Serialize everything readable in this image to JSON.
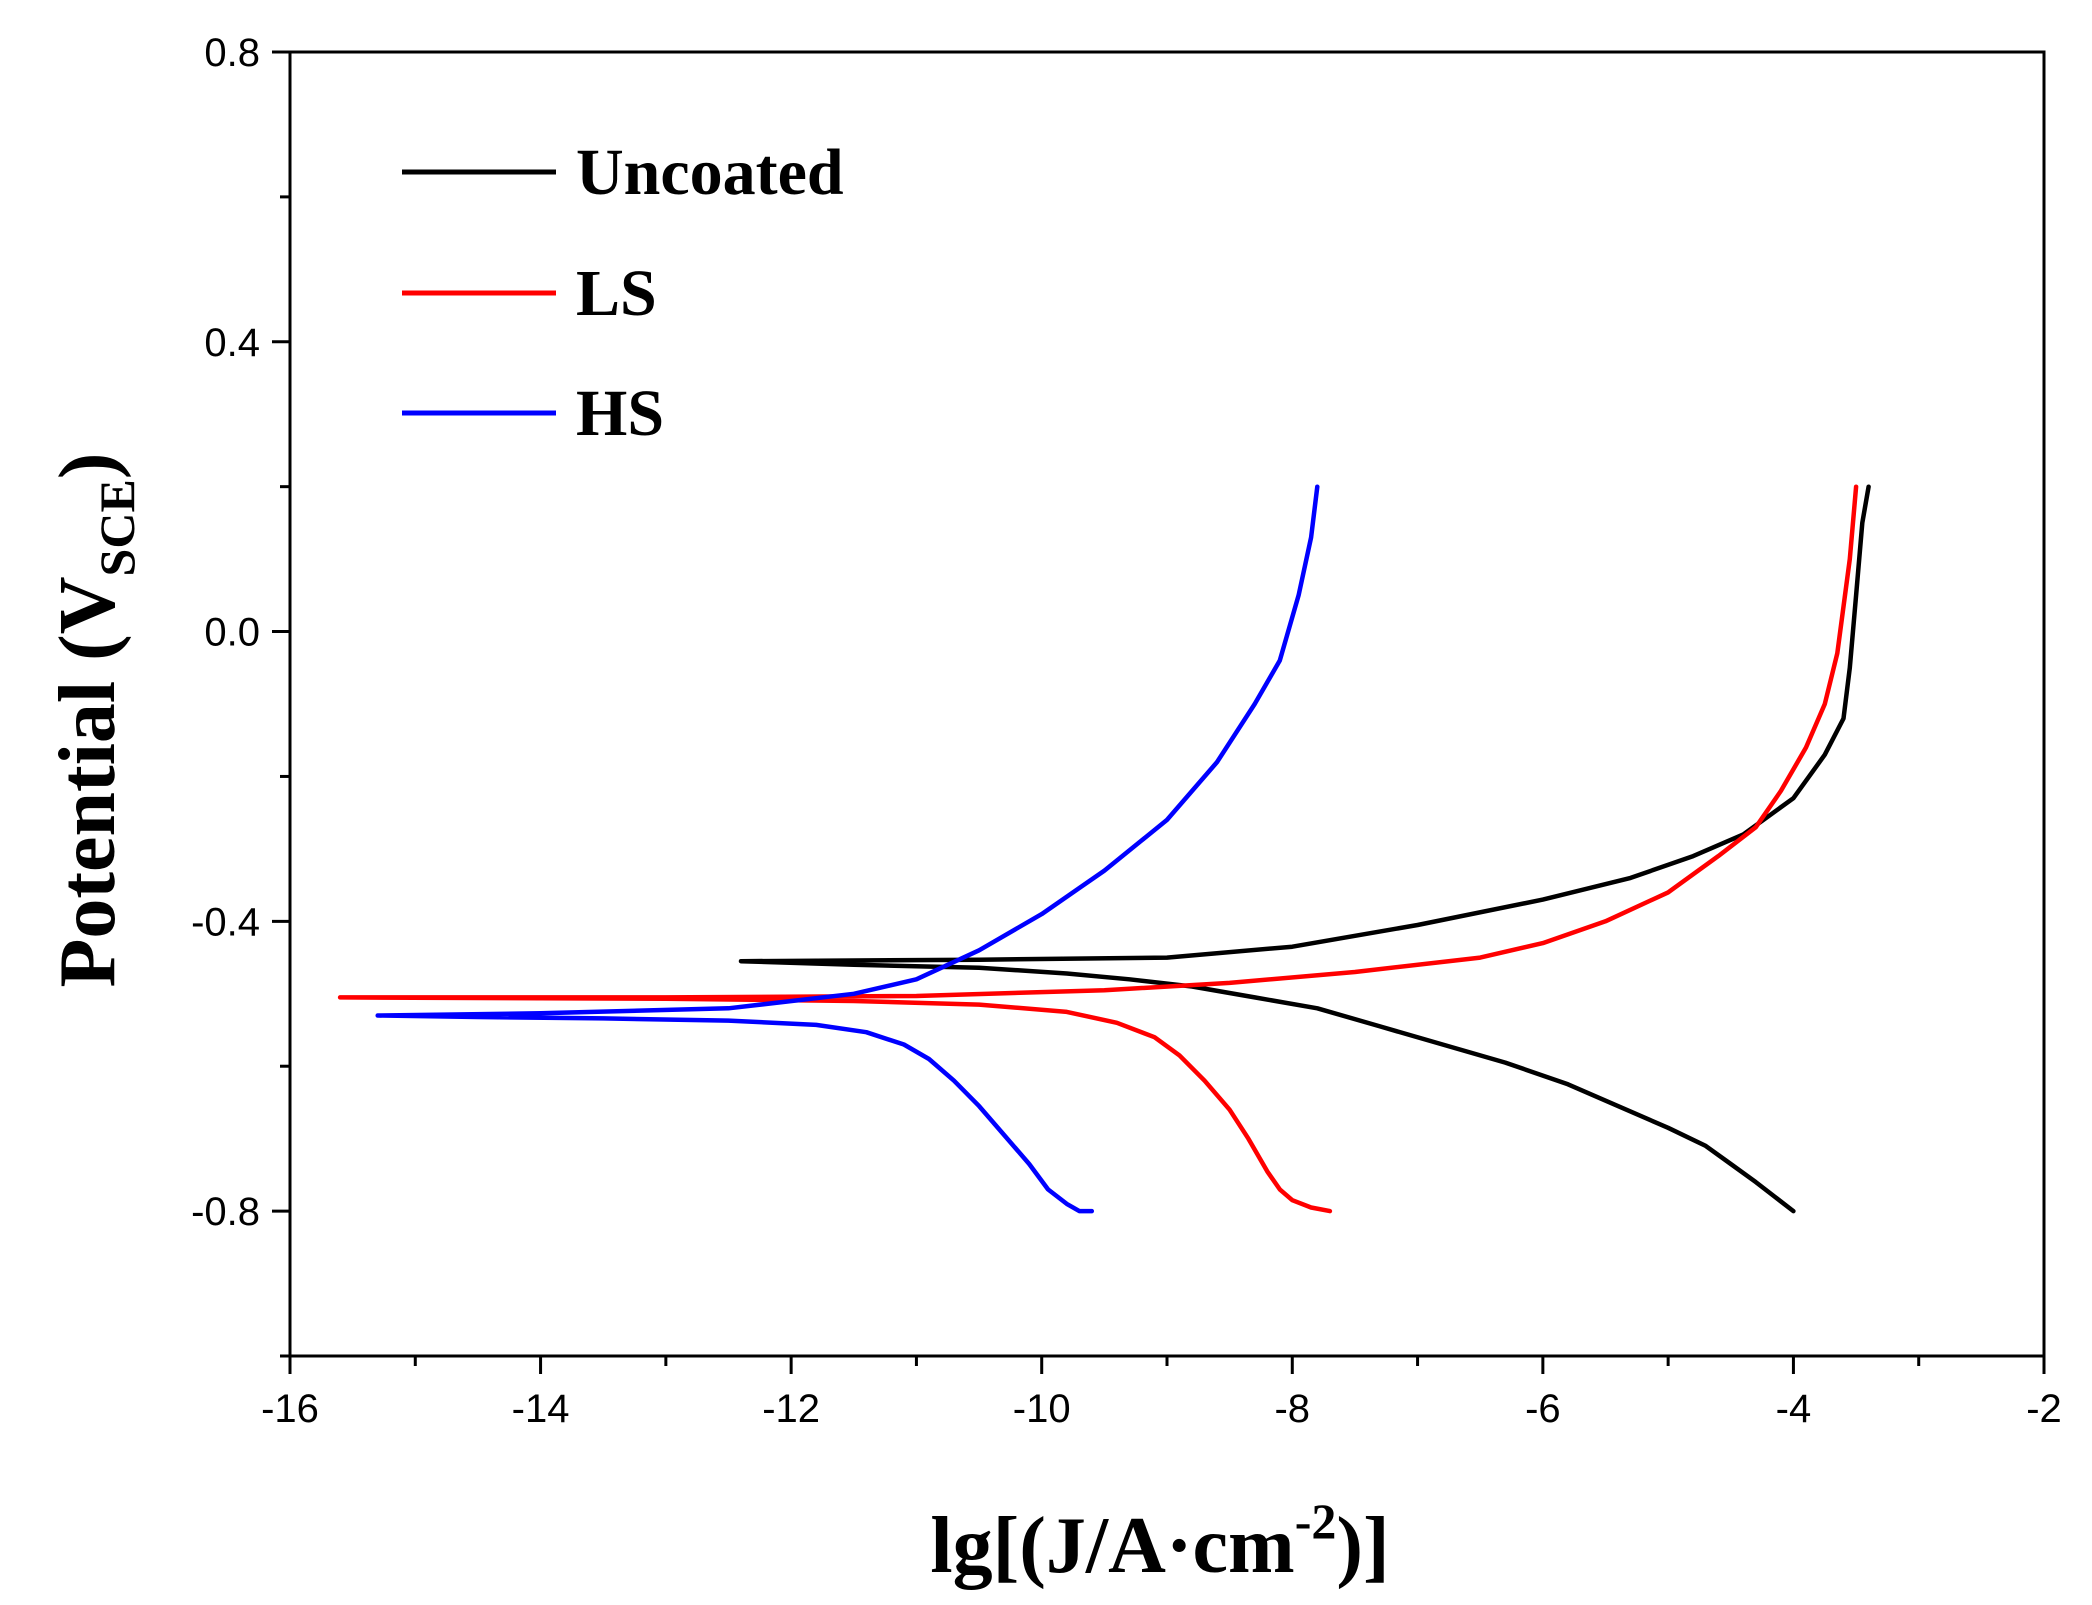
{
  "chart_data": {
    "type": "line",
    "title": "",
    "xlabel": {
      "main": "lg[(J/A·cm",
      "superscript": "-2",
      "close": ")]"
    },
    "ylabel": {
      "main": "Potential (V",
      "subscript": "SCE",
      "close": ")"
    },
    "xlim": [
      -16,
      -2
    ],
    "ylim": [
      -1.0,
      0.8
    ],
    "xticks": [
      -16,
      -14,
      -12,
      -10,
      -8,
      -6,
      -4,
      -2
    ],
    "xtick_labels": [
      "-16",
      "-14",
      "-12",
      "-10",
      "-8",
      "-6",
      "-4",
      "-2"
    ],
    "yticks": [
      -0.8,
      -0.4,
      0.0,
      0.4,
      0.8
    ],
    "ytick_labels": [
      "-0.8",
      "-0.4",
      "0.0",
      "0.4",
      "0.8"
    ],
    "grid": false,
    "legend_position": "top-left",
    "series": [
      {
        "name": "Uncoated",
        "color": "#000000",
        "x": [
          -4.0,
          -4.15,
          -4.3,
          -4.5,
          -4.7,
          -5.0,
          -5.4,
          -5.8,
          -6.3,
          -6.8,
          -7.3,
          -7.8,
          -8.3,
          -8.8,
          -9.3,
          -9.8,
          -10.5,
          -11.5,
          -12.4,
          -10.5,
          -9.0,
          -8.0,
          -7.0,
          -6.0,
          -5.3,
          -4.8,
          -4.4,
          -4.0,
          -3.75,
          -3.6,
          -3.55,
          -3.5,
          -3.45,
          -3.4
        ],
        "y": [
          -0.8,
          -0.78,
          -0.76,
          -0.735,
          -0.71,
          -0.685,
          -0.655,
          -0.625,
          -0.595,
          -0.57,
          -0.545,
          -0.52,
          -0.505,
          -0.49,
          -0.48,
          -0.472,
          -0.464,
          -0.46,
          -0.455,
          -0.453,
          -0.45,
          -0.435,
          -0.405,
          -0.37,
          -0.34,
          -0.31,
          -0.28,
          -0.23,
          -0.17,
          -0.12,
          -0.05,
          0.05,
          0.15,
          0.2
        ]
      },
      {
        "name": "LS",
        "color": "#ff0000",
        "x": [
          -7.7,
          -7.85,
          -8.0,
          -8.1,
          -8.2,
          -8.35,
          -8.5,
          -8.7,
          -8.9,
          -9.1,
          -9.4,
          -9.8,
          -10.5,
          -11.5,
          -13.0,
          -15.6,
          -13.0,
          -11.0,
          -9.5,
          -8.5,
          -7.5,
          -6.5,
          -6.0,
          -5.5,
          -5.0,
          -4.6,
          -4.3,
          -4.1,
          -3.9,
          -3.75,
          -3.65,
          -3.55,
          -3.5
        ],
        "y": [
          -0.8,
          -0.795,
          -0.785,
          -0.77,
          -0.745,
          -0.7,
          -0.66,
          -0.62,
          -0.585,
          -0.56,
          -0.54,
          -0.525,
          -0.515,
          -0.51,
          -0.507,
          -0.505,
          -0.505,
          -0.503,
          -0.495,
          -0.485,
          -0.47,
          -0.45,
          -0.43,
          -0.4,
          -0.36,
          -0.31,
          -0.27,
          -0.22,
          -0.16,
          -0.1,
          -0.03,
          0.1,
          0.2
        ]
      },
      {
        "name": "HS",
        "color": "#0000ff",
        "x": [
          -9.6,
          -9.7,
          -9.8,
          -9.95,
          -10.1,
          -10.3,
          -10.5,
          -10.7,
          -10.9,
          -11.1,
          -11.4,
          -11.8,
          -12.5,
          -13.5,
          -14.5,
          -15.3,
          -14.0,
          -12.5,
          -11.5,
          -11.0,
          -10.5,
          -10.0,
          -9.5,
          -9.0,
          -8.6,
          -8.3,
          -8.1,
          -7.95,
          -7.85,
          -7.8
        ],
        "y": [
          -0.8,
          -0.8,
          -0.79,
          -0.77,
          -0.735,
          -0.695,
          -0.655,
          -0.62,
          -0.59,
          -0.57,
          -0.553,
          -0.543,
          -0.537,
          -0.534,
          -0.532,
          -0.53,
          -0.527,
          -0.52,
          -0.5,
          -0.48,
          -0.44,
          -0.39,
          -0.33,
          -0.26,
          -0.18,
          -0.1,
          -0.04,
          0.05,
          0.13,
          0.2
        ]
      }
    ]
  }
}
